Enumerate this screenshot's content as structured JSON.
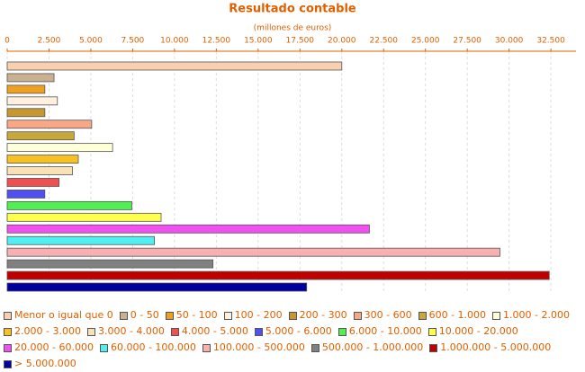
{
  "chart_data": {
    "type": "bar",
    "orientation": "horizontal",
    "title": "Resultado contable",
    "subtitle": "(millones de euros)",
    "categories": [
      "Menor o igual que 0",
      "0 - 50",
      "50 - 100",
      "100 - 200",
      "200 - 300",
      "300 - 600",
      "600 - 1.000",
      "1.000 - 2.000",
      "2.000 - 3.000",
      "3.000 - 4.000",
      "4.000 - 5.000",
      "5.000 - 6.000",
      "6.000 - 10.000",
      "10.000 - 20.000",
      "20.000 - 60.000",
      "60.000 - 100.000",
      "100.000 - 500.000",
      "500.000 - 1.000.000",
      "1.000.000 - 5.000.000",
      "> 5.000.000"
    ],
    "values": [
      20000,
      2800,
      2250,
      3000,
      2250,
      5050,
      4000,
      6300,
      4250,
      3900,
      3100,
      2250,
      7450,
      9200,
      21650,
      8800,
      29450,
      12300,
      32400,
      17900
    ],
    "colors": [
      "#f8d0b0",
      "#c8b090",
      "#f0a020",
      "#fff0e0",
      "#c89830",
      "#f8a888",
      "#c8a838",
      "#ffffd8",
      "#f8c020",
      "#f8e0b8",
      "#f05050",
      "#5050f0",
      "#50f050",
      "#ffff50",
      "#f050f0",
      "#50f0f0",
      "#f8b0b0",
      "#808080",
      "#c00000",
      "#0000a0"
    ],
    "xlim": [
      0,
      34000
    ],
    "xticks": [
      0,
      {
        "value": 2500,
        "label": "2.500"
      },
      {
        "value": 5000,
        "label": "5.000"
      },
      {
        "value": 7500,
        "label": "7.500"
      },
      {
        "value": 10000,
        "label": "10.000"
      },
      {
        "value": 12500,
        "label": "12.500"
      },
      {
        "value": 15000,
        "label": "15.000"
      },
      {
        "value": 17500,
        "label": "17.500"
      },
      {
        "value": 20000,
        "label": "20.000"
      },
      {
        "value": 22500,
        "label": "22.500"
      },
      {
        "value": 25000,
        "label": "25.000"
      },
      {
        "value": 27500,
        "label": "27.500"
      },
      {
        "value": 30000,
        "label": "30.000"
      },
      {
        "value": 32500,
        "label": "32.500"
      }
    ],
    "grid": true
  }
}
